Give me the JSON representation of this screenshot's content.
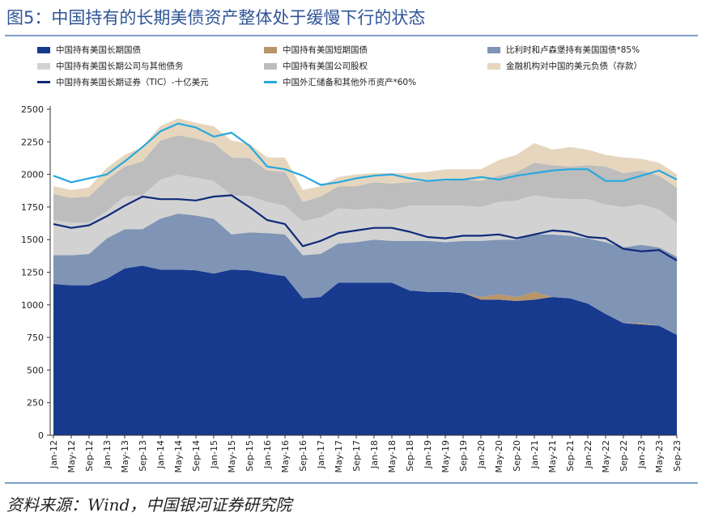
{
  "title": "图5：中国持有的长期美债资产整体处于缓慢下行的状态",
  "source": "资料来源：Wind，中国银河证券研究院",
  "chart_data": {
    "type": "area",
    "title": "图5：中国持有的长期美债资产整体处于缓慢下行的状态",
    "x_labels": [
      "Jan-12",
      "May-12",
      "Sep-12",
      "Jan-13",
      "May-13",
      "Sep-13",
      "Jan-14",
      "May-14",
      "Sep-14",
      "Jan-15",
      "May-15",
      "Sep-15",
      "Jan-16",
      "May-16",
      "Sep-16",
      "Jan-17",
      "May-17",
      "Sep-17",
      "Jan-18",
      "May-18",
      "Sep-18",
      "Jan-19",
      "May-19",
      "Sep-19",
      "Jan-20",
      "May-20",
      "Sep-20",
      "Jan-21",
      "May-21",
      "Sep-21",
      "Jan-22",
      "May-22",
      "Sep-22",
      "Jan-23",
      "May-23",
      "Sep-23"
    ],
    "ylim": [
      0,
      2500
    ],
    "yticks": [
      0,
      250,
      500,
      750,
      1000,
      1250,
      1500,
      1750,
      2000,
      2250,
      2500
    ],
    "grid": false,
    "legend_position": "top",
    "stacked_series": [
      {
        "name": "中国持有美国长期国债",
        "color": "#173a8f",
        "values": [
          1160,
          1150,
          1150,
          1200,
          1280,
          1300,
          1270,
          1270,
          1265,
          1240,
          1270,
          1265,
          1240,
          1220,
          1050,
          1060,
          1170,
          1170,
          1170,
          1170,
          1110,
          1100,
          1100,
          1090,
          1040,
          1040,
          1030,
          1040,
          1060,
          1050,
          1010,
          930,
          860,
          850,
          840,
          770
        ]
      },
      {
        "name": "中国持有美国短期国债",
        "color": "#b8966a",
        "values": [
          0,
          0,
          0,
          0,
          0,
          0,
          0,
          0,
          0,
          0,
          0,
          0,
          0,
          0,
          0,
          0,
          0,
          0,
          0,
          0,
          0,
          0,
          0,
          0,
          20,
          40,
          30,
          60,
          0,
          0,
          0,
          0,
          0,
          10,
          0,
          0
        ]
      },
      {
        "name": "比利时和卢森堡持有美国国债*85%",
        "color": "#8095b5",
        "values": [
          220,
          230,
          240,
          310,
          300,
          280,
          390,
          430,
          420,
          420,
          270,
          290,
          310,
          320,
          330,
          330,
          300,
          310,
          330,
          320,
          380,
          390,
          380,
          400,
          430,
          420,
          440,
          440,
          480,
          480,
          500,
          550,
          580,
          600,
          600,
          600
        ]
      },
      {
        "name": "中国持有美国长期公司与其他债务",
        "color": "#d2d2d2",
        "values": [
          270,
          250,
          240,
          210,
          250,
          260,
          300,
          300,
          290,
          290,
          300,
          280,
          240,
          220,
          260,
          280,
          270,
          250,
          240,
          240,
          270,
          270,
          280,
          270,
          260,
          290,
          300,
          300,
          280,
          280,
          300,
          290,
          310,
          310,
          290,
          260
        ]
      },
      {
        "name": "中国持有美国公司股权",
        "color": "#bdbdbd",
        "values": [
          200,
          190,
          200,
          240,
          230,
          260,
          300,
          300,
          300,
          290,
          290,
          290,
          240,
          260,
          150,
          160,
          170,
          180,
          200,
          200,
          180,
          190,
          190,
          200,
          200,
          200,
          220,
          250,
          250,
          250,
          260,
          290,
          260,
          260,
          260,
          270
        ]
      },
      {
        "name": "金融机构对中国的美元负债（存款）",
        "color": "#e6d6be",
        "values": [
          60,
          60,
          70,
          90,
          90,
          110,
          110,
          130,
          120,
          130,
          130,
          110,
          100,
          110,
          90,
          80,
          70,
          90,
          70,
          80,
          70,
          70,
          90,
          80,
          90,
          120,
          130,
          150,
          120,
          150,
          120,
          90,
          120,
          90,
          100,
          100
        ]
      }
    ],
    "line_series": [
      {
        "name": "中国持有美国长期证券（TIC）-十亿美元",
        "color": "#0f2a7a",
        "values": [
          1620,
          1590,
          1610,
          1680,
          1760,
          1830,
          1810,
          1810,
          1800,
          1830,
          1840,
          1750,
          1650,
          1620,
          1450,
          1490,
          1550,
          1570,
          1590,
          1590,
          1560,
          1520,
          1510,
          1530,
          1530,
          1540,
          1510,
          1540,
          1570,
          1560,
          1520,
          1510,
          1430,
          1410,
          1420,
          1340
        ]
      },
      {
        "name": "中国外汇储备和其他外币资产*60%",
        "color": "#27a9de",
        "values": [
          1990,
          1940,
          1970,
          2000,
          2100,
          2210,
          2330,
          2390,
          2360,
          2290,
          2320,
          2220,
          2060,
          2040,
          1990,
          1920,
          1940,
          1970,
          1990,
          2000,
          1970,
          1950,
          1960,
          1960,
          1980,
          1960,
          1990,
          2010,
          2030,
          2040,
          2040,
          1950,
          1950,
          1990,
          2030,
          1960
        ]
      }
    ]
  }
}
